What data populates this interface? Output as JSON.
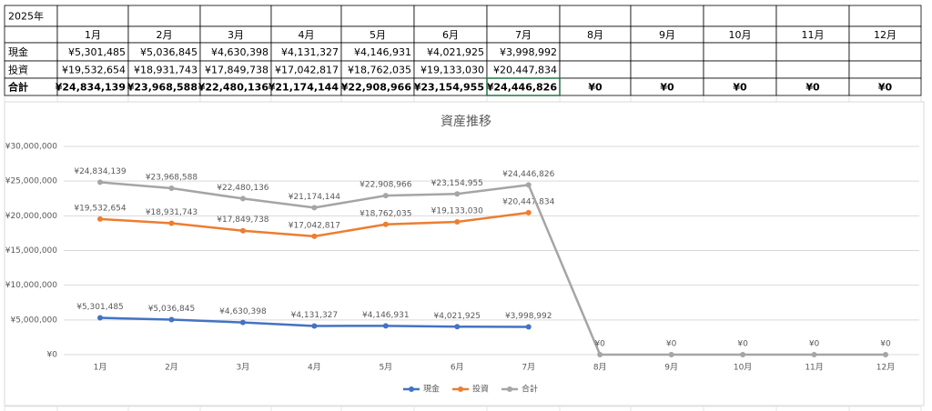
{
  "table": {
    "rows": [
      [
        "2025年",
        null,
        null,
        null,
        null,
        null,
        null,
        null,
        null,
        null,
        null,
        null,
        null
      ],
      [
        null,
        "1月",
        "2月",
        "3月",
        "4月",
        "5月",
        "6月",
        "7月",
        "8月",
        "9月",
        "10月",
        "11月",
        "12月"
      ],
      [
        "現金",
        "¥5,301,485",
        "¥5,036,845",
        "¥4,630,398",
        "¥4,131,327",
        "¥4,146,931",
        "¥4,021,925",
        "¥3,998,992",
        null,
        null,
        null,
        null,
        null
      ],
      [
        "投資",
        "¥19,532,654",
        "¥18,931,743",
        "¥17,849,738",
        "¥17,042,817",
        "¥18,762,035",
        "¥19,133,030",
        "¥20,447,834",
        null,
        null,
        null,
        null,
        null
      ],
      [
        "合計",
        "¥24,834,139",
        "¥23,968,588",
        "¥22,480,136",
        "¥21,174,144",
        "¥22,908,966",
        "¥23,154,955",
        "¥24,446,826",
        "¥0",
        "¥0",
        "¥0",
        "¥0",
        "¥0"
      ]
    ]
  },
  "chart_data": {
    "type": "line",
    "title": "資産推移",
    "categories": [
      "1月",
      "2月",
      "3月",
      "4月",
      "5月",
      "6月",
      "7月",
      "8月",
      "9月",
      "10月",
      "11月",
      "12月"
    ],
    "series": [
      {
        "name": "現金",
        "color": "#4472c4",
        "values": [
          5301485,
          5036845,
          4630398,
          4131327,
          4146931,
          4021925,
          3998992,
          null,
          null,
          null,
          null,
          null
        ],
        "value_labels": [
          "¥5,301,485",
          "¥5,036,845",
          "¥4,630,398",
          "¥4,131,327",
          "¥4,146,931",
          "¥4,021,925",
          "¥3,998,992",
          null,
          null,
          null,
          null,
          null
        ]
      },
      {
        "name": "投資",
        "color": "#ed7d31",
        "values": [
          19532654,
          18931743,
          17849738,
          17042817,
          18762035,
          19133030,
          20447834,
          null,
          null,
          null,
          null,
          null
        ],
        "value_labels": [
          "¥19,532,654",
          "¥18,931,743",
          "¥17,849,738",
          "¥17,042,817",
          "¥18,762,035",
          "¥19,133,030",
          "¥20,447,834",
          null,
          null,
          null,
          null,
          null
        ]
      },
      {
        "name": "合計",
        "color": "#a5a5a5",
        "values": [
          24834139,
          23968588,
          22480136,
          21174144,
          22908966,
          23154955,
          24446826,
          0,
          0,
          0,
          0,
          0
        ],
        "value_labels": [
          "¥24,834,139",
          "¥23,968,588",
          "¥22,480,136",
          "¥21,174,144",
          "¥22,908,966",
          "¥23,154,955",
          "¥24,446,826",
          "¥0",
          "¥0",
          "¥0",
          "¥0",
          "¥0"
        ]
      }
    ],
    "ylim": [
      0,
      30000000
    ],
    "yticks": [
      {
        "value": 0,
        "label": "¥0"
      },
      {
        "value": 5000000,
        "label": "¥5,000,000"
      },
      {
        "value": 10000000,
        "label": "¥10,000,000"
      },
      {
        "value": 15000000,
        "label": "¥15,000,000"
      },
      {
        "value": 20000000,
        "label": "¥20,000,000"
      },
      {
        "value": 25000000,
        "label": "¥25,000,000"
      },
      {
        "value": 30000000,
        "label": "¥30,000,000"
      }
    ],
    "grid": true,
    "legend": "bottom"
  }
}
